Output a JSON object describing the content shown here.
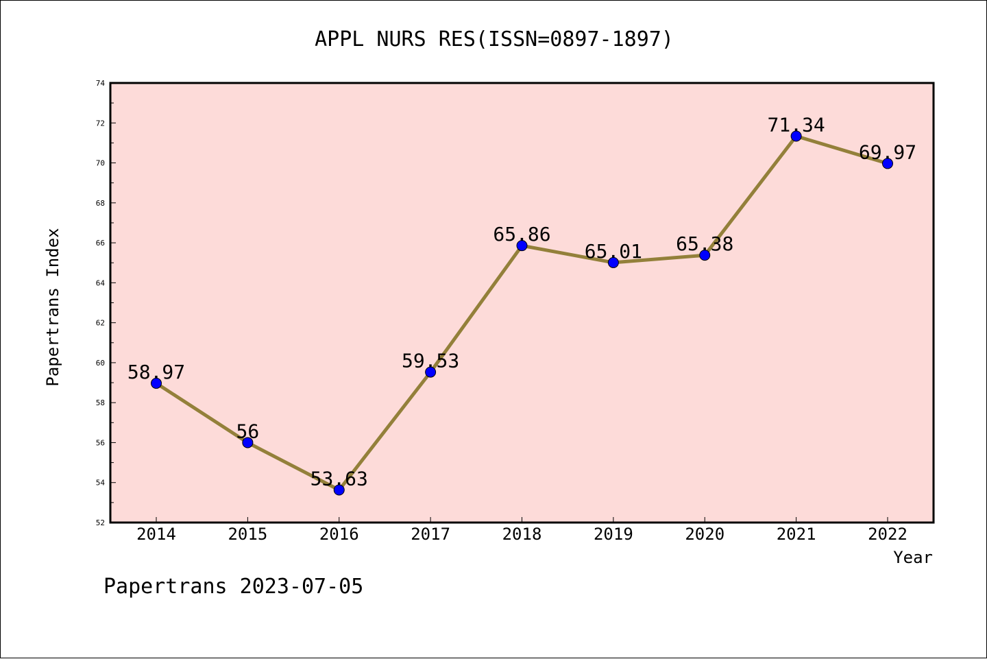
{
  "chart_data": {
    "type": "line",
    "title": "APPL NURS RES(ISSN=0897-1897)",
    "xlabel": "Year",
    "ylabel": "Papertrans Index",
    "categories": [
      "2014",
      "2015",
      "2016",
      "2017",
      "2018",
      "2019",
      "2020",
      "2021",
      "2022"
    ],
    "values": [
      58.97,
      56,
      53.63,
      59.53,
      65.86,
      65.01,
      65.38,
      71.34,
      69.97
    ],
    "data_labels": [
      "58.97",
      "56",
      "53.63",
      "59.53",
      "65.86",
      "65.01",
      "65.38",
      "71.34",
      "69.97"
    ],
    "ylim": [
      52,
      74
    ],
    "yticks": [
      "52",
      "54",
      "56",
      "58",
      "60",
      "62",
      "64",
      "66",
      "68",
      "70",
      "72",
      "74"
    ],
    "grid": false,
    "colors": {
      "plot_background": "#fddbd9",
      "line": "#93803a",
      "marker": "#0000ff"
    }
  },
  "footer": "Papertrans 2023-07-05"
}
